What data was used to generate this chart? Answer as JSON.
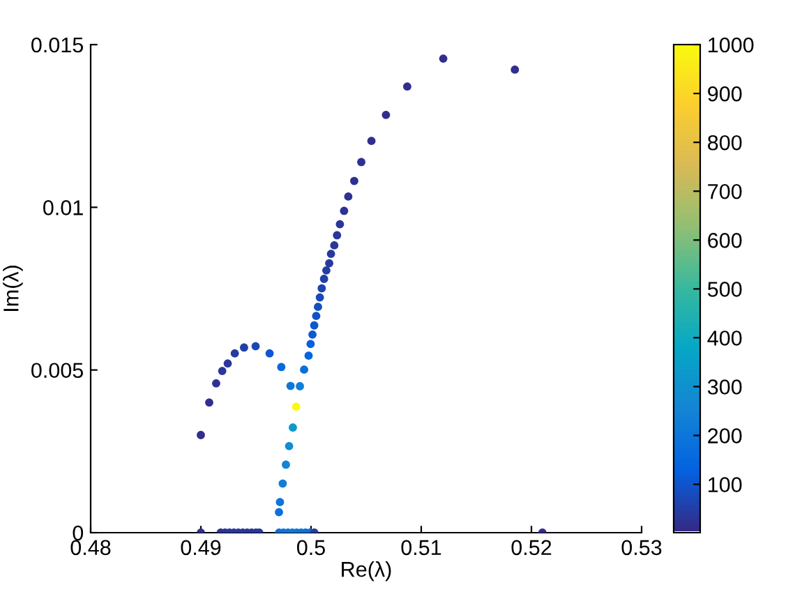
{
  "chart_data": {
    "type": "scatter",
    "xlabel": "Re(λ)",
    "ylabel": "Im(λ)",
    "xlim": [
      0.48,
      0.53
    ],
    "xticks": [
      0.48,
      0.49,
      0.5,
      0.51,
      0.52,
      0.53
    ],
    "ylim": [
      0,
      0.015
    ],
    "yticks": [
      0,
      0.005,
      0.01,
      0.015
    ],
    "clim": [
      1,
      1000
    ],
    "cticks": [
      100,
      200,
      300,
      400,
      500,
      600,
      700,
      800,
      900,
      1000
    ],
    "grid": false,
    "marker": "circle",
    "series": [
      {
        "x": [
          0.512,
          0.5185,
          0.50873,
          0.5068,
          0.50548,
          0.50456,
          0.50392,
          0.50338,
          0.503,
          0.50262,
          0.50236,
          0.50211,
          0.50181,
          0.50165,
          0.50139,
          0.50118,
          0.50097,
          0.5008,
          0.50063,
          0.50047,
          0.50029,
          0.50013,
          0.49996,
          0.49978,
          0.49937,
          0.49899,
          0.49865,
          0.49835,
          0.49801,
          0.49772,
          0.49743,
          0.49718,
          0.49709,
          0.49814,
          0.4973,
          0.49624,
          0.49497,
          0.49392,
          0.49308,
          0.49244,
          0.49194,
          0.49139,
          0.49076,
          0.49,
          0.49,
          0.4918,
          0.4922,
          0.4926,
          0.493,
          0.4934,
          0.4938,
          0.4942,
          0.4946,
          0.495,
          0.4953,
          0.4971,
          0.4975,
          0.4979,
          0.4983,
          0.4987,
          0.4991,
          0.4995,
          0.4999,
          0.5003,
          0.521
        ],
        "values": [
          0.01457,
          0.01423,
          0.01371,
          0.01284,
          0.01204,
          0.01139,
          0.01081,
          0.01033,
          0.00989,
          0.00948,
          0.00914,
          0.00883,
          0.00857,
          0.00828,
          0.00806,
          0.0078,
          0.00751,
          0.00723,
          0.00694,
          0.00666,
          0.00637,
          0.00609,
          0.0058,
          0.00544,
          0.00501,
          0.0045,
          0.00387,
          0.00323,
          0.00266,
          0.00209,
          0.00151,
          0.00094,
          0.00063,
          0.00451,
          0.00509,
          0.00551,
          0.00573,
          0.00569,
          0.00551,
          0.0052,
          0.00497,
          0.00459,
          0.004,
          0.003,
          0,
          0,
          0,
          0,
          0,
          0,
          0,
          0,
          0,
          0,
          0,
          0,
          0,
          0,
          0,
          0,
          0,
          0,
          0,
          0,
          0
        ],
        "cvalues": [
          10,
          10,
          12,
          14,
          16,
          18,
          20,
          22,
          24,
          26,
          28,
          30,
          35,
          40,
          45,
          50,
          60,
          70,
          80,
          90,
          100,
          110,
          120,
          130,
          170,
          230,
          1000,
          330,
          280,
          250,
          220,
          200,
          180,
          200,
          150,
          100,
          70,
          50,
          40,
          30,
          25,
          20,
          15,
          10,
          10,
          20,
          25,
          30,
          30,
          30,
          30,
          30,
          30,
          30,
          30,
          180,
          190,
          200,
          210,
          200,
          190,
          180,
          170,
          40,
          10
        ]
      }
    ]
  }
}
